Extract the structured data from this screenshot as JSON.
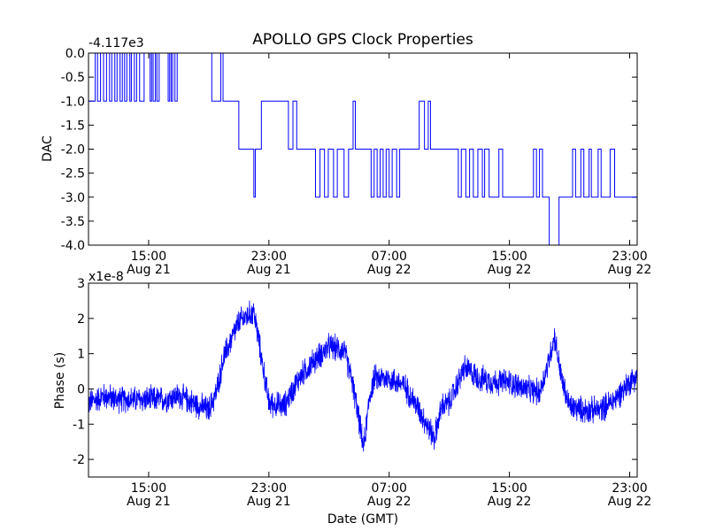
{
  "figure": {
    "title": "APOLLO GPS Clock Properties",
    "xlabel": "Date (GMT)",
    "line_color": "#0000ff"
  },
  "chart_data": [
    {
      "type": "line",
      "title": "APOLLO GPS Clock Properties",
      "xlabel": "",
      "ylabel": "DAC",
      "y_offset_label": "-4.117e3",
      "x_range": [
        "2012-08-21 11:00",
        "2012-08-23 00:00"
      ],
      "xlim_hours": [
        11,
        47.5
      ],
      "ylim": [
        -4.0,
        0.0
      ],
      "x_ticks": [
        {
          "hours": 15,
          "time": "15:00",
          "date": "Aug 21"
        },
        {
          "hours": 23,
          "time": "23:00",
          "date": "Aug 21"
        },
        {
          "hours": 31,
          "time": "07:00",
          "date": "Aug 22"
        },
        {
          "hours": 39,
          "time": "15:00",
          "date": "Aug 22"
        },
        {
          "hours": 47,
          "time": "23:00",
          "date": "Aug 22"
        }
      ],
      "y_ticks": [
        {
          "value": 0.0,
          "label": "0.0"
        },
        {
          "value": -0.5,
          "label": "-0.5"
        },
        {
          "value": -1.0,
          "label": "-1.0"
        },
        {
          "value": -1.5,
          "label": "-1.5"
        },
        {
          "value": -2.0,
          "label": "-2.0"
        },
        {
          "value": -2.5,
          "label": "-2.5"
        },
        {
          "value": -3.0,
          "label": "-3.0"
        },
        {
          "value": -3.5,
          "label": "-3.5"
        },
        {
          "value": -4.0,
          "label": "-4.0"
        }
      ],
      "step_series": {
        "name": "DAC",
        "segments": [
          [
            11.0,
            -1
          ],
          [
            11.45,
            0
          ],
          [
            11.6,
            -1
          ],
          [
            11.8,
            0
          ],
          [
            12.0,
            -1
          ],
          [
            12.2,
            0
          ],
          [
            12.4,
            -1
          ],
          [
            12.55,
            0
          ],
          [
            12.75,
            -1
          ],
          [
            12.9,
            0
          ],
          [
            13.1,
            -1
          ],
          [
            13.25,
            0
          ],
          [
            13.4,
            -1
          ],
          [
            13.55,
            0
          ],
          [
            13.75,
            -1
          ],
          [
            13.85,
            0
          ],
          [
            14.05,
            -1
          ],
          [
            14.2,
            0
          ],
          [
            14.4,
            -1
          ],
          [
            14.7,
            0
          ],
          [
            15.1,
            -1
          ],
          [
            15.2,
            0
          ],
          [
            15.3,
            -1
          ],
          [
            15.45,
            0
          ],
          [
            15.55,
            -1
          ],
          [
            15.7,
            0
          ],
          [
            16.3,
            -1
          ],
          [
            16.4,
            0
          ],
          [
            16.5,
            -1
          ],
          [
            16.6,
            0
          ],
          [
            16.75,
            -1
          ],
          [
            16.9,
            0
          ],
          [
            19.2,
            -1
          ],
          [
            19.8,
            0
          ],
          [
            19.95,
            -1
          ],
          [
            21.0,
            -2
          ],
          [
            22.0,
            -3
          ],
          [
            22.1,
            -2
          ],
          [
            22.5,
            -1
          ],
          [
            24.3,
            -2
          ],
          [
            24.6,
            -1
          ],
          [
            24.85,
            -2
          ],
          [
            26.1,
            -3
          ],
          [
            26.4,
            -2
          ],
          [
            26.7,
            -3
          ],
          [
            26.95,
            -2
          ],
          [
            27.3,
            -3
          ],
          [
            27.55,
            -2
          ],
          [
            28.0,
            -3
          ],
          [
            28.3,
            -2
          ],
          [
            28.6,
            -1
          ],
          [
            28.75,
            -2
          ],
          [
            29.8,
            -3
          ],
          [
            30.0,
            -2
          ],
          [
            30.2,
            -3
          ],
          [
            30.4,
            -2
          ],
          [
            30.6,
            -3
          ],
          [
            30.8,
            -2
          ],
          [
            31.0,
            -3
          ],
          [
            31.2,
            -2
          ],
          [
            31.5,
            -3
          ],
          [
            31.7,
            -2
          ],
          [
            33.0,
            -1
          ],
          [
            33.35,
            -2
          ],
          [
            33.6,
            -1
          ],
          [
            33.75,
            -2
          ],
          [
            35.6,
            -3
          ],
          [
            35.8,
            -2
          ],
          [
            36.1,
            -3
          ],
          [
            36.35,
            -2
          ],
          [
            36.6,
            -3
          ],
          [
            36.9,
            -2
          ],
          [
            37.2,
            -3
          ],
          [
            37.35,
            -2
          ],
          [
            37.65,
            -3
          ],
          [
            38.3,
            -2
          ],
          [
            38.55,
            -3
          ],
          [
            40.6,
            -2
          ],
          [
            40.8,
            -3
          ],
          [
            41.0,
            -2
          ],
          [
            41.2,
            -3
          ],
          [
            41.65,
            -4
          ],
          [
            42.3,
            -3
          ],
          [
            43.2,
            -2
          ],
          [
            43.4,
            -3
          ],
          [
            43.75,
            -2
          ],
          [
            43.95,
            -3
          ],
          [
            44.3,
            -2
          ],
          [
            44.45,
            -3
          ],
          [
            44.9,
            -2
          ],
          [
            45.1,
            -3
          ],
          [
            45.7,
            -2
          ],
          [
            46.0,
            -3
          ],
          [
            47.5,
            -3
          ]
        ]
      }
    },
    {
      "type": "line",
      "xlabel": "Date (GMT)",
      "ylabel": "Phase (s)",
      "y_scale_label": "x1e-8",
      "x_range": [
        "2012-08-21 11:00",
        "2012-08-23 00:00"
      ],
      "xlim_hours": [
        11,
        47.5
      ],
      "ylim": [
        -2.5,
        3.0
      ],
      "x_ticks": [
        {
          "hours": 15,
          "time": "15:00",
          "date": "Aug 21"
        },
        {
          "hours": 23,
          "time": "23:00",
          "date": "Aug 21"
        },
        {
          "hours": 31,
          "time": "07:00",
          "date": "Aug 22"
        },
        {
          "hours": 39,
          "time": "15:00",
          "date": "Aug 22"
        },
        {
          "hours": 47,
          "time": "23:00",
          "date": "Aug 22"
        }
      ],
      "y_ticks": [
        {
          "value": -2,
          "label": "-2"
        },
        {
          "value": -1,
          "label": "-1"
        },
        {
          "value": 0,
          "label": "0"
        },
        {
          "value": 1,
          "label": "1"
        },
        {
          "value": 2,
          "label": "2"
        },
        {
          "value": 3,
          "label": "3"
        }
      ],
      "series": {
        "name": "Phase",
        "baseline": [
          [
            11.0,
            -0.4
          ],
          [
            12.0,
            -0.2
          ],
          [
            13.0,
            -0.3
          ],
          [
            14.0,
            -0.3
          ],
          [
            15.0,
            -0.3
          ],
          [
            16.0,
            -0.3
          ],
          [
            17.0,
            -0.2
          ],
          [
            18.0,
            -0.4
          ],
          [
            19.0,
            -0.6
          ],
          [
            19.5,
            -0.1
          ],
          [
            20.0,
            0.9
          ],
          [
            21.0,
            1.9
          ],
          [
            22.0,
            2.2
          ],
          [
            22.5,
            0.9
          ],
          [
            23.0,
            -0.4
          ],
          [
            24.0,
            -0.5
          ],
          [
            25.0,
            0.3
          ],
          [
            26.0,
            0.8
          ],
          [
            27.0,
            1.2
          ],
          [
            28.0,
            1.1
          ],
          [
            28.5,
            0.3
          ],
          [
            29.0,
            -0.9
          ],
          [
            29.3,
            -1.7
          ],
          [
            29.7,
            -0.2
          ],
          [
            30.0,
            0.3
          ],
          [
            31.0,
            0.3
          ],
          [
            32.0,
            0.1
          ],
          [
            33.0,
            -0.6
          ],
          [
            34.0,
            -1.4
          ],
          [
            34.5,
            -0.5
          ],
          [
            35.0,
            -0.4
          ],
          [
            36.0,
            0.6
          ],
          [
            37.0,
            0.3
          ],
          [
            38.0,
            0.2
          ],
          [
            39.0,
            0.2
          ],
          [
            40.0,
            0.0
          ],
          [
            41.0,
            -0.1
          ],
          [
            41.5,
            0.6
          ],
          [
            42.0,
            1.5
          ],
          [
            42.5,
            0.2
          ],
          [
            43.0,
            -0.5
          ],
          [
            44.0,
            -0.6
          ],
          [
            45.0,
            -0.6
          ],
          [
            46.0,
            -0.3
          ],
          [
            47.0,
            0.2
          ],
          [
            47.5,
            0.4
          ]
        ],
        "noise_amplitude": 0.45
      }
    }
  ]
}
